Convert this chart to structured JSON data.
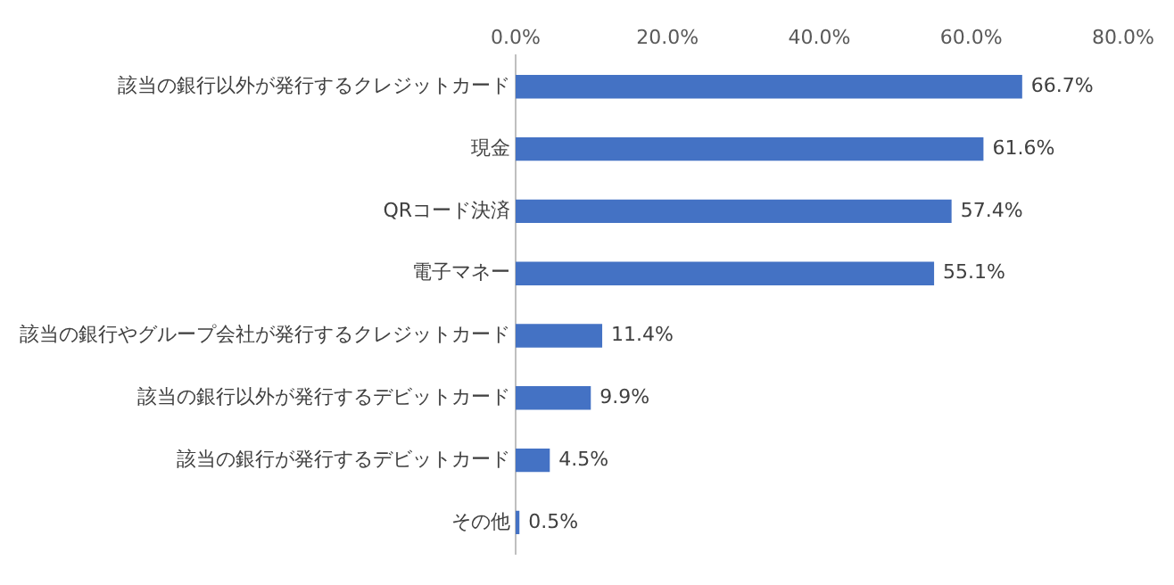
{
  "chart_data": {
    "type": "bar",
    "orientation": "horizontal",
    "categories": [
      "該当の銀行以外が発行するクレジットカード",
      "現金",
      "QRコード決済",
      "電子マネー",
      "該当の銀行やグループ会社が発行するクレジットカード",
      "該当の銀行以外が発行するデビットカード",
      "該当の銀行が発行するデビットカード",
      "その他"
    ],
    "values": [
      66.7,
      61.6,
      57.4,
      55.1,
      11.4,
      9.9,
      4.5,
      0.5
    ],
    "value_labels": [
      "66.7%",
      "61.6%",
      "57.4%",
      "55.1%",
      "11.4%",
      "9.9%",
      "4.5%",
      "0.5%"
    ],
    "color": "#4472c4",
    "xlim": [
      0,
      80
    ],
    "xticks": [
      {
        "value": 0,
        "label": "0.0%"
      },
      {
        "value": 20,
        "label": "20.0%"
      },
      {
        "value": 40,
        "label": "40.0%"
      },
      {
        "value": 60,
        "label": "60.0%"
      },
      {
        "value": 80,
        "label": "80.0%"
      }
    ],
    "grid": false,
    "legend": false
  }
}
